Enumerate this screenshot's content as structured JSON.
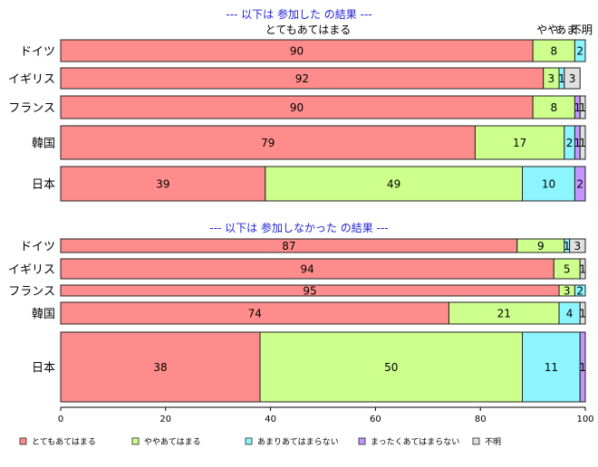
{
  "chart_data": [
    {
      "type": "bar",
      "orientation": "horizontal",
      "stacked": true,
      "title": "--- 以下は 参加した の結果 ---",
      "column_headers": [
        "とてもあてはまる",
        "やや..",
        "あま..",
        "不明"
      ],
      "categories": [
        "ドイツ",
        "イギリス",
        "フランス",
        "韓国",
        "日本"
      ],
      "series": [
        {
          "name": "とてもあてはまる",
          "values": [
            90,
            92,
            90,
            79,
            39
          ]
        },
        {
          "name": "ややあてはまる",
          "values": [
            8,
            3,
            8,
            17,
            49
          ]
        },
        {
          "name": "あまりあてはまらない",
          "values": [
            2,
            1,
            0,
            2,
            10
          ]
        },
        {
          "name": "まったくあてはまらない",
          "values": [
            0,
            0,
            1,
            1,
            2
          ]
        },
        {
          "name": "不明",
          "values": [
            0,
            3,
            1,
            1,
            0
          ]
        }
      ],
      "xlim": [
        0,
        100
      ]
    },
    {
      "type": "bar",
      "orientation": "horizontal",
      "stacked": true,
      "title": "--- 以下は 参加しなかった の結果 ---",
      "categories": [
        "ドイツ",
        "イギリス",
        "フランス",
        "韓国",
        "日本"
      ],
      "series": [
        {
          "name": "とてもあてはまる",
          "values": [
            87,
            94,
            95,
            74,
            38
          ]
        },
        {
          "name": "ややあてはまる",
          "values": [
            9,
            5,
            3,
            21,
            50
          ]
        },
        {
          "name": "あまりあてはまらない",
          "values": [
            1,
            0,
            2,
            4,
            11
          ]
        },
        {
          "name": "まったくあてはまらない",
          "values": [
            0,
            0,
            0,
            0,
            1
          ]
        },
        {
          "name": "不明",
          "values": [
            3,
            1,
            0,
            1,
            0
          ]
        }
      ],
      "xlim": [
        0,
        100
      ]
    }
  ],
  "x_ticks": [
    "0",
    "20",
    "40",
    "60",
    "80",
    "100"
  ],
  "legend": [
    {
      "label": "とてもあてはまる",
      "color": "#ff8c8c"
    },
    {
      "label": "ややあてはまる",
      "color": "#ccff8c"
    },
    {
      "label": "あまりあてはまらない",
      "color": "#8cf5ff"
    },
    {
      "label": "まったくあてはまらない",
      "color": "#c396ff"
    },
    {
      "label": "不明",
      "color": "#e0e0e0"
    }
  ],
  "colors": {
    "title": "#1f1fd6",
    "border": "#222222"
  }
}
